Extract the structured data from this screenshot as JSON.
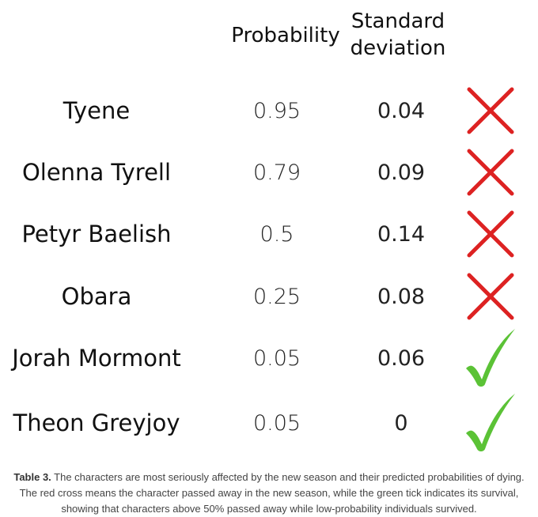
{
  "headers": {
    "probability": "Probability",
    "sd_line1": "Standard",
    "sd_line2": "deviation"
  },
  "rows": [
    {
      "name": "Tyene",
      "probability": "0.95",
      "sd": "0.04",
      "outcome": "cross-icon"
    },
    {
      "name": "Olenna Tyrell",
      "probability": "0.79",
      "sd": "0.09",
      "outcome": "cross-icon"
    },
    {
      "name": "Petyr Baelish",
      "probability": "0.5",
      "sd": "0.14",
      "outcome": "cross-icon"
    },
    {
      "name": "Obara",
      "probability": "0.25",
      "sd": "0.08",
      "outcome": "cross-icon"
    },
    {
      "name": "Jorah Mormont",
      "probability": "0.05",
      "sd": "0.06",
      "outcome": "tick-icon"
    },
    {
      "name": "Theon Greyjoy",
      "probability": "0.05",
      "sd": "0",
      "outcome": "tick-icon"
    }
  ],
  "colors": {
    "cross": "#dd2222",
    "tick": "#5bc236"
  },
  "caption": {
    "label": "Table 3.",
    "text": " The characters are most seriously affected by the new season and their predicted probabilities of dying. The red cross means the character passed away in the new season, while the green tick indicates its survival, showing that characters above 50% passed away while low-probability individuals survived."
  }
}
